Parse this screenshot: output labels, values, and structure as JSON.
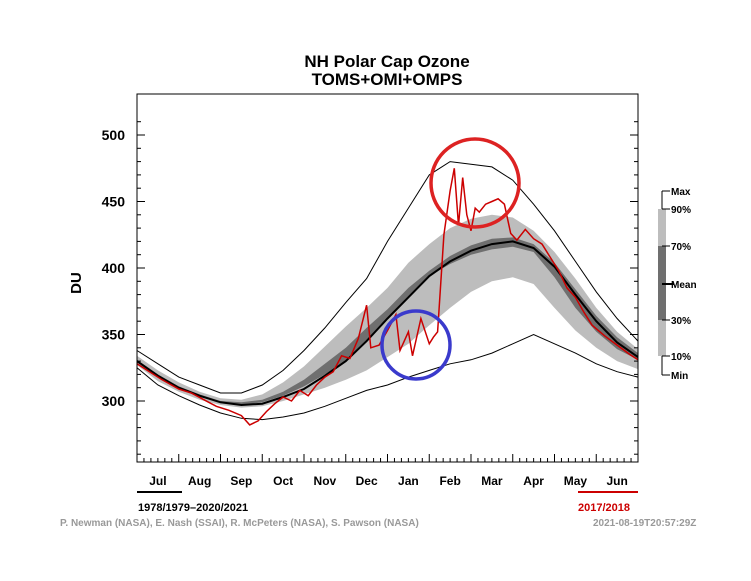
{
  "chart_data": {
    "type": "line",
    "title": "NH Polar Cap Ozone",
    "subtitle": "TOMS+OMI+OMPS",
    "ylabel": "DU",
    "xlabel": "",
    "ylim": [
      250,
      520
    ],
    "yticks": [
      300,
      350,
      400,
      450,
      500
    ],
    "months": [
      "Jul",
      "Aug",
      "Sep",
      "Oct",
      "Nov",
      "Dec",
      "Jan",
      "Feb",
      "Mar",
      "Apr",
      "May",
      "Jun"
    ],
    "x_units": "months since start of July",
    "x": [
      0,
      0.5,
      1,
      1.5,
      2,
      2.5,
      3,
      3.5,
      4,
      4.5,
      5,
      5.5,
      6,
      6.5,
      7,
      7.5,
      8,
      8.5,
      9,
      9.5,
      10,
      10.5,
      11,
      11.5,
      12
    ],
    "band_min": [
      325,
      312,
      304,
      297,
      291,
      287,
      286,
      288,
      291,
      296,
      302,
      308,
      312,
      318,
      323,
      328,
      331,
      336,
      343,
      350,
      343,
      336,
      328,
      322,
      318
    ],
    "band_p10": [
      327,
      315,
      307,
      301,
      297,
      295,
      296,
      300,
      305,
      310,
      316,
      323,
      333,
      343,
      357,
      370,
      382,
      390,
      393,
      388,
      370,
      353,
      340,
      330,
      324
    ],
    "band_p30": [
      329,
      318,
      309,
      303,
      299,
      297,
      299,
      304,
      311,
      320,
      330,
      345,
      362,
      378,
      394,
      403,
      410,
      414,
      416,
      412,
      393,
      370,
      352,
      339,
      331
    ],
    "mean": [
      330,
      319,
      310,
      304,
      299,
      297,
      298,
      303,
      309,
      319,
      330,
      345,
      362,
      378,
      394,
      405,
      413,
      418,
      420,
      415,
      401,
      380,
      360,
      344,
      333
    ],
    "band_p70": [
      331,
      320,
      311,
      305,
      300,
      299,
      301,
      307,
      316,
      328,
      340,
      355,
      369,
      385,
      398,
      409,
      417,
      422,
      423,
      418,
      404,
      384,
      364,
      348,
      336
    ],
    "band_p90": [
      334,
      323,
      314,
      307,
      302,
      301,
      305,
      314,
      326,
      341,
      356,
      370,
      385,
      404,
      418,
      430,
      437,
      440,
      438,
      428,
      412,
      392,
      370,
      352,
      339
    ],
    "band_max": [
      338,
      328,
      318,
      312,
      306,
      306,
      312,
      323,
      338,
      355,
      374,
      392,
      420,
      445,
      470,
      480,
      478,
      476,
      466,
      448,
      428,
      405,
      382,
      362,
      345
    ],
    "series_2017_2018": [
      [
        0,
        328
      ],
      [
        0.3,
        322
      ],
      [
        0.6,
        316
      ],
      [
        1,
        309
      ],
      [
        1.3,
        306
      ],
      [
        1.6,
        301
      ],
      [
        1.9,
        296
      ],
      [
        2.2,
        293
      ],
      [
        2.5,
        289
      ],
      [
        2.7,
        282
      ],
      [
        2.9,
        285
      ],
      [
        3.1,
        292
      ],
      [
        3.3,
        298
      ],
      [
        3.5,
        303
      ],
      [
        3.7,
        300
      ],
      [
        3.9,
        308
      ],
      [
        4.1,
        304
      ],
      [
        4.3,
        312
      ],
      [
        4.5,
        318
      ],
      [
        4.7,
        322
      ],
      [
        4.9,
        334
      ],
      [
        5.1,
        332
      ],
      [
        5.3,
        347
      ],
      [
        5.5,
        372
      ],
      [
        5.6,
        340
      ],
      [
        5.8,
        342
      ],
      [
        6.0,
        353
      ],
      [
        6.2,
        365
      ],
      [
        6.3,
        338
      ],
      [
        6.5,
        352
      ],
      [
        6.6,
        334
      ],
      [
        6.8,
        362
      ],
      [
        7.0,
        343
      ],
      [
        7.1,
        348
      ],
      [
        7.2,
        352
      ],
      [
        7.35,
        425
      ],
      [
        7.5,
        458
      ],
      [
        7.6,
        475
      ],
      [
        7.7,
        432
      ],
      [
        7.8,
        468
      ],
      [
        7.9,
        440
      ],
      [
        8.0,
        428
      ],
      [
        8.1,
        445
      ],
      [
        8.2,
        442
      ],
      [
        8.35,
        448
      ],
      [
        8.5,
        450
      ],
      [
        8.65,
        452
      ],
      [
        8.8,
        448
      ],
      [
        8.95,
        426
      ],
      [
        9.1,
        421
      ],
      [
        9.3,
        429
      ],
      [
        9.5,
        422
      ],
      [
        9.7,
        418
      ],
      [
        9.9,
        408
      ],
      [
        10.1,
        398
      ],
      [
        10.3,
        385
      ],
      [
        10.5,
        378
      ],
      [
        10.7,
        367
      ],
      [
        10.9,
        357
      ],
      [
        11.2,
        349
      ],
      [
        11.5,
        342
      ],
      [
        11.8,
        335
      ],
      [
        12,
        331
      ]
    ],
    "legend": [
      "Max",
      "90%",
      "70%",
      "Mean",
      "30%",
      "10%",
      "Min"
    ],
    "range_label": "1978/1979–2020/2021",
    "highlight_label": "2017/2018",
    "colors": {
      "minmax_line": "#000000",
      "band_10_90": "#bdbdbd",
      "band_30_70": "#6f6f6f",
      "mean_line": "#000000",
      "highlight": "#cc0000",
      "red_circle": "#dd2222",
      "blue_circle": "#3a3acc"
    }
  },
  "credits": "P. Newman (NASA), E. Nash (SSAI), R. McPeters (NASA), S. Pawson (NASA)",
  "timestamp": "2021-08-19T20:57:29Z"
}
